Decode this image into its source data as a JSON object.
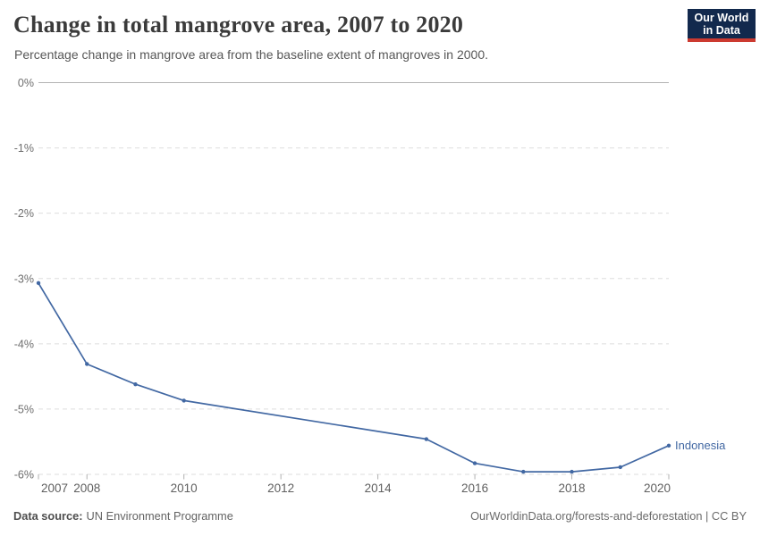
{
  "header": {
    "title": "Change in total mangrove area, 2007 to 2020",
    "subtitle": "Percentage change in mangrove area from the baseline extent of mangroves in 2000.",
    "logo": {
      "line1": "Our World",
      "line2": "in Data",
      "bg_color": "#12294d",
      "bar_color": "#cc3a30"
    }
  },
  "footer": {
    "source_label": "Data source:",
    "source_value": "UN Environment Programme",
    "attribution": "OurWorldinData.org/forests-and-deforestation | CC BY"
  },
  "chart_data": {
    "type": "line",
    "title": "Change in total mangrove area, 2007 to 2020",
    "subtitle": "Percentage change in mangrove area from the baseline extent of mangroves in 2000.",
    "xlabel": "",
    "ylabel": "",
    "xlim": [
      2007,
      2020
    ],
    "ylim": [
      -6,
      0
    ],
    "x_ticks": [
      2007,
      2008,
      2010,
      2012,
      2014,
      2016,
      2018,
      2020
    ],
    "y_ticks": [
      0,
      -1,
      -2,
      -3,
      -4,
      -5,
      -6
    ],
    "y_unit": "%",
    "grid": "horizontal dashed gridlines, solid line at 0%",
    "legend": "series labeled inline at end of line",
    "series": [
      {
        "name": "Indonesia",
        "color": "#4268a3",
        "x": [
          2007,
          2008,
          2009,
          2010,
          2015,
          2016,
          2017,
          2018,
          2019,
          2020
        ],
        "y": [
          -3.07,
          -4.31,
          -4.62,
          -4.87,
          -5.46,
          -5.83,
          -5.96,
          -5.96,
          -5.89,
          -5.56
        ]
      }
    ],
    "style": {
      "zero_line_color": "#b3b3b3",
      "gridline_color": "#dedede",
      "tick_color": "#b0b0b0",
      "y_label_color": "#6e6e6e",
      "x_label_color": "#5f5f5f"
    }
  }
}
